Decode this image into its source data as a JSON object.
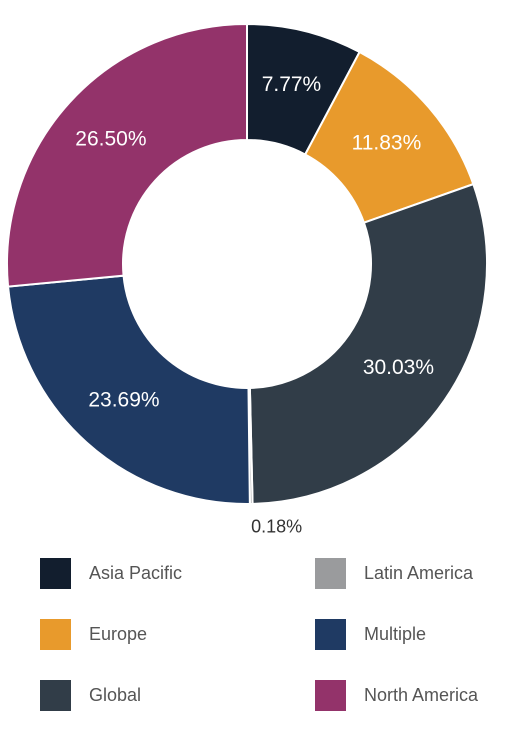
{
  "chart_data": {
    "type": "donut",
    "categories": [
      "Asia Pacific",
      "Europe",
      "Global",
      "Latin America",
      "Multiple",
      "North America"
    ],
    "values": [
      7.77,
      11.83,
      30.03,
      0.18,
      23.69,
      26.5
    ],
    "value_labels": [
      "7.77%",
      "11.83%",
      "30.03%",
      "0.18%",
      "23.69%",
      "26.50%"
    ],
    "colors": [
      "#121e2e",
      "#e89a2c",
      "#313d48",
      "#9a9b9d",
      "#1f3a63",
      "#93336a"
    ]
  }
}
